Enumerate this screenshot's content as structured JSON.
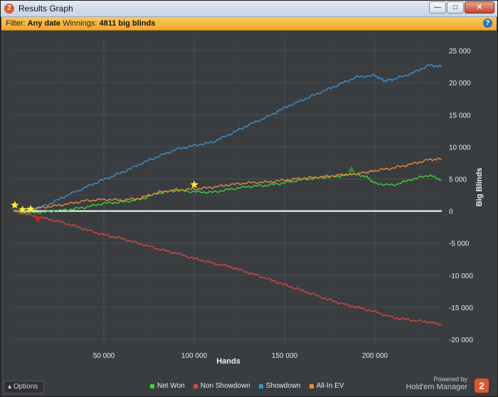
{
  "window": {
    "title": "Results Graph",
    "app_icon_glyph": "2"
  },
  "filter": {
    "label": "Filter:",
    "date_value": "Any date",
    "winnings_label": "Winnings:",
    "winnings_value": "4811 big blinds"
  },
  "bottom": {
    "options_label": "Options",
    "powered_line1": "Powered by",
    "powered_line2": "Hold'em Manager",
    "logo_glyph": "2"
  },
  "colors": {
    "net_won": "#3ed13a",
    "non_showdown": "#d9463f",
    "showdown": "#3a92d0",
    "allin_ev": "#e9893a",
    "zero_line": "#ffffff",
    "plot_bg": "#3a3d40",
    "grid": "#4b4f54"
  },
  "chart_data": {
    "type": "line",
    "xlabel": "Hands",
    "ylabel": "Big Blinds",
    "xlim": [
      0,
      237000
    ],
    "ylim": [
      -21000,
      27000
    ],
    "xticks": [
      50000,
      100000,
      150000,
      200000
    ],
    "xtick_labels": [
      "50 000",
      "100 000",
      "150 000",
      "200 000"
    ],
    "yticks": [
      25000,
      20000,
      15000,
      10000,
      5000,
      0,
      -5000,
      -10000,
      -15000,
      -20000
    ],
    "ytick_labels": [
      "25 000",
      "20 000",
      "15 000",
      "10 000",
      "5 000",
      "0",
      "-5 000",
      "-10 000",
      "-15 000",
      "-20 000"
    ],
    "grid": true,
    "legend_position": "bottom",
    "series": [
      {
        "key": "net_won",
        "name": "Net Won",
        "x": [
          0,
          10000,
          20000,
          30000,
          40000,
          50000,
          60000,
          70000,
          80000,
          90000,
          100000,
          110000,
          120000,
          130000,
          140000,
          150000,
          160000,
          170000,
          180000,
          187000,
          195000,
          200000,
          210000,
          220000,
          230000,
          237000
        ],
        "y": [
          0,
          -300,
          -100,
          200,
          600,
          1200,
          1400,
          1800,
          2800,
          3200,
          3000,
          2900,
          3400,
          3800,
          4000,
          4400,
          4900,
          5200,
          5400,
          5800,
          5400,
          4300,
          4000,
          4900,
          5600,
          4800
        ]
      },
      {
        "key": "non_showdown",
        "name": "Non Showdown",
        "x": [
          0,
          10000,
          20000,
          30000,
          40000,
          50000,
          60000,
          70000,
          80000,
          90000,
          100000,
          110000,
          120000,
          130000,
          140000,
          150000,
          160000,
          170000,
          180000,
          190000,
          200000,
          210000,
          220000,
          230000,
          237000
        ],
        "y": [
          0,
          -700,
          -1300,
          -2000,
          -2900,
          -3700,
          -4300,
          -5100,
          -5900,
          -6600,
          -7400,
          -8100,
          -8700,
          -9600,
          -10500,
          -11500,
          -12400,
          -13400,
          -14300,
          -15000,
          -15700,
          -16600,
          -17000,
          -17300,
          -17700
        ]
      },
      {
        "key": "showdown",
        "name": "Showdown",
        "x": [
          0,
          10000,
          20000,
          30000,
          40000,
          50000,
          60000,
          70000,
          80000,
          90000,
          100000,
          110000,
          120000,
          130000,
          140000,
          150000,
          160000,
          170000,
          180000,
          190000,
          200000,
          205000,
          210000,
          220000,
          230000,
          237000
        ],
        "y": [
          0,
          100,
          1100,
          2500,
          3700,
          4900,
          6000,
          7300,
          8500,
          9600,
          10200,
          10700,
          12000,
          13400,
          14600,
          16100,
          17300,
          18500,
          19700,
          20900,
          21100,
          20300,
          20500,
          21400,
          22700,
          22500
        ]
      },
      {
        "key": "allin_ev",
        "name": "All-In EV",
        "x": [
          0,
          10000,
          20000,
          30000,
          40000,
          50000,
          60000,
          70000,
          80000,
          90000,
          100000,
          110000,
          120000,
          130000,
          140000,
          150000,
          160000,
          170000,
          180000,
          187000,
          195000,
          200000,
          210000,
          220000,
          230000,
          237000
        ],
        "y": [
          0,
          300,
          700,
          1100,
          1600,
          1800,
          1700,
          2000,
          2900,
          3300,
          3400,
          3700,
          4100,
          4400,
          4500,
          4800,
          5100,
          5300,
          5600,
          5700,
          6000,
          6300,
          6700,
          7300,
          8000,
          8100
        ]
      }
    ],
    "markers": [
      {
        "type": "star",
        "color": "#ffee33",
        "x": 700,
        "y": 900
      },
      {
        "type": "star",
        "color": "#ffee33",
        "x": 5000,
        "y": 200
      },
      {
        "type": "star",
        "color": "#ffee33",
        "x": 9500,
        "y": 300
      },
      {
        "type": "star",
        "color": "#ffee33",
        "x": 100000,
        "y": 4100
      },
      {
        "type": "triangle-up",
        "color": "#2e8b2e",
        "x": 187000,
        "y": 6500
      },
      {
        "type": "triangle-down",
        "color": "#dd1a1a",
        "x": 13500,
        "y": -1300
      }
    ]
  }
}
